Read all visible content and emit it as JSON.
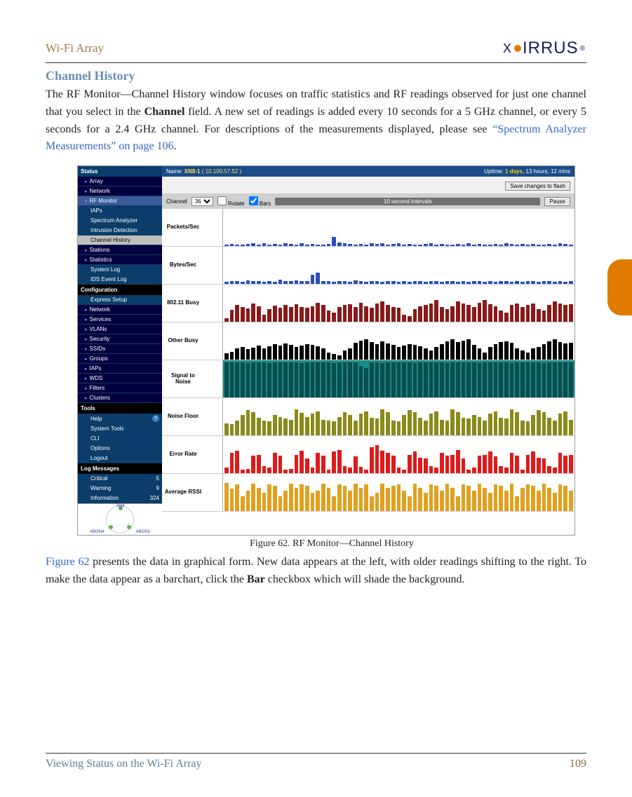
{
  "header": {
    "title": "Wi-Fi Array",
    "brand": "XIRRUS"
  },
  "section": {
    "title": "Channel History"
  },
  "paragraphs": {
    "intro_a": "The RF Monitor—Channel History window focuses on traffic statistics and RF readings observed for just one channel that you select in the ",
    "intro_bold": "Channel",
    "intro_b": " field. A new set of readings is added every 10 seconds for a 5 GHz channel, or every 5 seconds for a 2.4 GHz channel. For descriptions of the measurements displayed, please see ",
    "intro_link": "“Spectrum Analyzer Measurements” on page 106",
    "intro_c": ".",
    "below_link": "Figure 62",
    "below": " presents the data in graphical form. New data appears at the left, with older readings shifting to the right. To make the data appear as a barchart, click the ",
    "below_bold": "Bar",
    "below_end": " checkbox which will shade the background."
  },
  "figure": {
    "caption": "Figure 62. RF Monitor—Channel History"
  },
  "screenshot": {
    "sidebar": {
      "status_hdr": "Status",
      "array": "Array",
      "network": "Network",
      "rfmon": "RF Monitor",
      "iaps": "IAPs",
      "spectrum": "Spectrum Analyzer",
      "intrusion": "Intrusion Detection",
      "channel_hist": "Channel History",
      "stations": "Stations",
      "statistics": "Statistics",
      "syslog": "System Log",
      "idslog": "IDS Event Log",
      "config_hdr": "Configuration",
      "express": "Express Setup",
      "network2": "Network",
      "services": "Services",
      "vlans": "VLANs",
      "security": "Security",
      "ssids": "SSIDs",
      "groups": "Groups",
      "iaps2": "IAPs",
      "wds": "WDS",
      "filters": "Filters",
      "clusters": "Clusters",
      "tools_hdr": "Tools",
      "help": "Help",
      "systools": "System Tools",
      "cli": "CLI",
      "options": "Options",
      "logout": "Logout",
      "logmsg_hdr": "Log Messages",
      "critical": "Critical",
      "critical_n": "5",
      "warning": "Warning",
      "warning_n": "9",
      "info": "Information",
      "info_n": "324",
      "ap_an4": "AN4",
      "ap_abgn4": "ABGN4",
      "ap_abgn1": "ABGN1"
    },
    "topbar": {
      "name_label": "Name:",
      "name_value": "XN8-1",
      "ip": "( 10.100.57.52 )",
      "uptime_label": "Uptime:",
      "uptime_days": "1 days,",
      "uptime_rest": "13 hours, 12 mins",
      "save_btn": "Save changes to flash"
    },
    "toolbar": {
      "channel_label": "Channel",
      "channel_value": "36",
      "rotate_label": "Rotate",
      "bars_label": "Bars",
      "interval": "10 second intervals",
      "pause_btn": "Pause"
    },
    "charts": [
      {
        "label": "Packets/Sec",
        "axTop": "10K",
        "axBot": "0",
        "color": "#2a4dbf",
        "bg": "#ffffff",
        "values": [
          5,
          6,
          5,
          4,
          6,
          7,
          5,
          8,
          4,
          6,
          5,
          7,
          6,
          5,
          8,
          5,
          6,
          4,
          5,
          6,
          24,
          10,
          7,
          6,
          5,
          6,
          4,
          7,
          6,
          8,
          5,
          6,
          7,
          5,
          6,
          4,
          5,
          6,
          7,
          5,
          6,
          4,
          5,
          6,
          5,
          7,
          5,
          6,
          4,
          5,
          6,
          5,
          7,
          6,
          5,
          6,
          5,
          6,
          4,
          5,
          6,
          5,
          7,
          6,
          5
        ]
      },
      {
        "label": "Bytes/Sec",
        "axTop": "1M",
        "axBot": "0",
        "color": "#2a4dbf",
        "bg": "#ffffff",
        "values": [
          6,
          7,
          8,
          6,
          10,
          7,
          8,
          6,
          7,
          6,
          12,
          8,
          7,
          9,
          7,
          8,
          25,
          30,
          7,
          8,
          6,
          7,
          8,
          6,
          10,
          7,
          6,
          8,
          7,
          6,
          7,
          8,
          6,
          7,
          6,
          8,
          7,
          6,
          7,
          8,
          6,
          7,
          8,
          6,
          7,
          6,
          7,
          8,
          6,
          7,
          6,
          8,
          7,
          6,
          7,
          6,
          8,
          7,
          6,
          7,
          8,
          6,
          7,
          6,
          8
        ]
      },
      {
        "label": "802.11 Busy",
        "axTop": "100%",
        "axBot": "0%",
        "color": "#8a1a1a",
        "bg": "#ffffff",
        "values": [
          10,
          32,
          45,
          40,
          36,
          50,
          42,
          20,
          35,
          44,
          38,
          46,
          40,
          48,
          40,
          38,
          42,
          52,
          45,
          30,
          25,
          40,
          45,
          48,
          40,
          52,
          42,
          38,
          50,
          55,
          45,
          40,
          38,
          20,
          15,
          35,
          42,
          45,
          50,
          58,
          40,
          35,
          42,
          55,
          50,
          45,
          40,
          52,
          58,
          48,
          42,
          30,
          25,
          45,
          50,
          40,
          45,
          50,
          35,
          30,
          45,
          55,
          50,
          45,
          48
        ]
      },
      {
        "label": "Other Busy",
        "axTop": "100%",
        "axBot": "0%",
        "color": "#000000",
        "bg": "#ffffff",
        "values": [
          18,
          22,
          30,
          35,
          28,
          32,
          38,
          30,
          36,
          42,
          38,
          44,
          40,
          35,
          38,
          42,
          40,
          36,
          30,
          20,
          15,
          12,
          25,
          30,
          45,
          52,
          55,
          48,
          42,
          50,
          44,
          40,
          35,
          38,
          42,
          40,
          36,
          30,
          25,
          35,
          42,
          50,
          55,
          48,
          52,
          56,
          40,
          30,
          20,
          35,
          42,
          48,
          50,
          45,
          30,
          25,
          20,
          30,
          35,
          42,
          50,
          55,
          48,
          44,
          46
        ]
      },
      {
        "label": "Signal to Noise",
        "axTop": "30",
        "axBot": "0",
        "color": "#0a4d4d",
        "bg": "#1a8a8a",
        "values": [
          95,
          94,
          95,
          94,
          92,
          95,
          94,
          95,
          93,
          95,
          94,
          95,
          94,
          95,
          93,
          95,
          94,
          95,
          94,
          95,
          93,
          95,
          94,
          95,
          94,
          85,
          80,
          94,
          95,
          93,
          95,
          94,
          95,
          94,
          95,
          93,
          95,
          94,
          95,
          94,
          95,
          93,
          95,
          94,
          95,
          94,
          95,
          93,
          95,
          94,
          95,
          94,
          95,
          93,
          95,
          94,
          95,
          94,
          95,
          93,
          95,
          94,
          95,
          94,
          95
        ]
      },
      {
        "label": "Noise Floor",
        "axTop": "-70",
        "axBot": "-95",
        "color": "#8a8a1a",
        "bg": "#ffffff",
        "values": [
          32,
          30,
          40,
          55,
          68,
          62,
          48,
          40,
          38,
          55,
          50,
          45,
          42,
          70,
          60,
          50,
          58,
          65,
          42,
          40,
          38,
          50,
          62,
          55,
          40,
          58,
          65,
          48,
          45,
          70,
          62,
          40,
          38,
          55,
          68,
          62,
          48,
          40,
          58,
          65,
          42,
          40,
          70,
          62,
          48,
          45,
          55,
          50,
          40,
          58,
          65,
          48,
          45,
          70,
          62,
          40,
          38,
          55,
          68,
          62,
          48,
          40,
          58,
          65,
          42
        ]
      },
      {
        "label": "Error Rate",
        "axTop": "100%",
        "axBot": "0%",
        "color": "#e01a1a",
        "bg": "#ffffff",
        "values": [
          15,
          55,
          60,
          10,
          12,
          48,
          50,
          20,
          15,
          55,
          48,
          10,
          12,
          50,
          60,
          40,
          15,
          55,
          48,
          10,
          58,
          62,
          20,
          15,
          45,
          18,
          10,
          70,
          75,
          60,
          55,
          48,
          15,
          10,
          50,
          58,
          42,
          40,
          20,
          15,
          55,
          48,
          50,
          62,
          40,
          10,
          15,
          48,
          50,
          58,
          45,
          20,
          15,
          55,
          48,
          10,
          50,
          58,
          42,
          40,
          20,
          15,
          55,
          48,
          50
        ]
      },
      {
        "label": "Average RSSI",
        "axTop": "-30",
        "axBot": "-95",
        "color": "#e0a020",
        "bg": "#ffffff",
        "values": [
          75,
          60,
          72,
          40,
          55,
          74,
          62,
          50,
          72,
          68,
          40,
          55,
          74,
          62,
          72,
          68,
          50,
          55,
          74,
          62,
          40,
          72,
          68,
          55,
          74,
          62,
          72,
          40,
          50,
          74,
          62,
          68,
          72,
          55,
          40,
          74,
          62,
          50,
          72,
          68,
          55,
          74,
          62,
          40,
          72,
          68,
          55,
          74,
          62,
          50,
          72,
          68,
          55,
          74,
          40,
          62,
          72,
          68,
          55,
          74,
          62,
          50,
          72,
          68,
          55
        ]
      }
    ]
  },
  "footer": {
    "text": "Viewing Status on the Wi-Fi Array",
    "page": "109"
  }
}
